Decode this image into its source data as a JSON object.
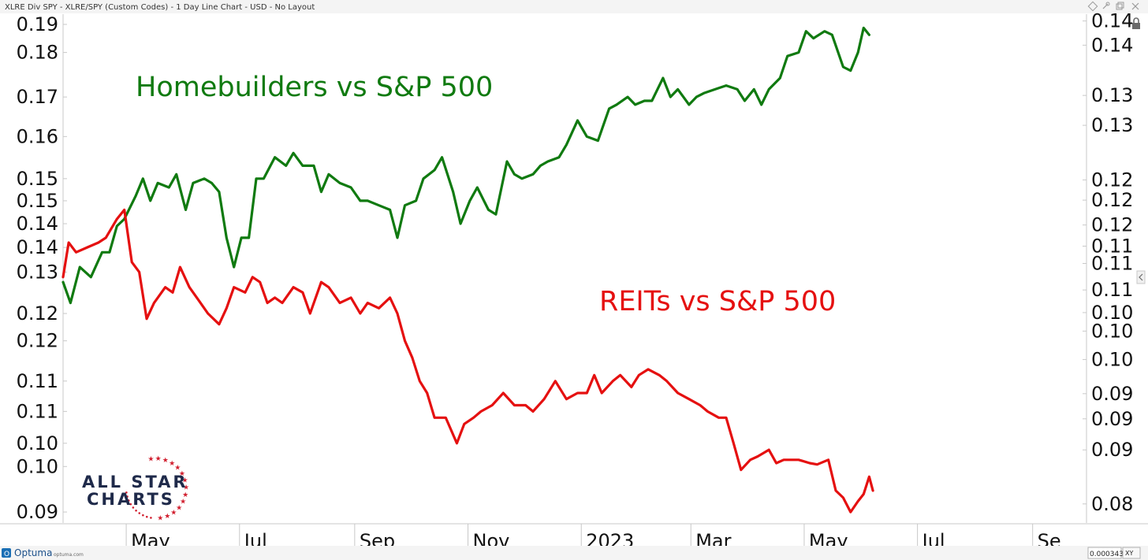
{
  "header": {
    "title": "XLRE Div SPY - XLRE/SPY (Custom Codes) - 1 Day Line Chart - USD - No Layout"
  },
  "toolbar": {
    "lock_icon": "lock-icon",
    "pin_icon": "pin-icon",
    "restore_icon": "restore-icon",
    "close_icon": "close-icon"
  },
  "footer": {
    "brand": "Optuma",
    "brand_url": "optuma.com",
    "readout": "0.000343",
    "xy_label": "XY"
  },
  "logo": {
    "line1": "ALL STAR",
    "line2": "CHARTS"
  },
  "colors": {
    "homebuilders": "#107a10",
    "reits": "#e51010",
    "axis": "#c8c8c8"
  },
  "chart_data": {
    "type": "line",
    "title": "",
    "xlabel": "",
    "ylabel": "",
    "x_ticks": [
      "May",
      "Jul",
      "Sep",
      "Nov",
      "2023",
      "Mar",
      "May",
      "Jul",
      "Se"
    ],
    "left_axis": {
      "scale": "log",
      "ticks": [
        "0.19",
        "0.18",
        "0.17",
        "0.16",
        "0.15",
        "0.15",
        "0.14",
        "0.14",
        "0.13",
        "0.12",
        "0.12",
        "0.11",
        "0.11",
        "0.10",
        "0.10",
        "0.09"
      ],
      "ylim": [
        0.0885,
        0.193
      ]
    },
    "right_axis": {
      "scale": "log",
      "ticks": [
        "0.14",
        "0.14",
        "0.13",
        "0.13",
        "0.12",
        "0.12",
        "0.12",
        "0.11",
        "0.11",
        "0.11",
        "0.10",
        "0.10",
        "0.10",
        "0.09",
        "0.09",
        "0.09",
        "0.08"
      ],
      "ylim": [
        0.0878,
        0.1465
      ]
    },
    "annotations": [
      "Homebuilders vs S&P 500",
      "REITs vs S&P 500"
    ],
    "series": [
      {
        "label": "Homebuilders vs S&P 500",
        "axis": "left",
        "color": "#107a10",
        "points": [
          [
            "2022-03-28",
            0.128
          ],
          [
            "2022-04-01",
            0.124
          ],
          [
            "2022-04-06",
            0.131
          ],
          [
            "2022-04-12",
            0.129
          ],
          [
            "2022-04-18",
            0.134
          ],
          [
            "2022-04-22",
            0.134
          ],
          [
            "2022-04-26",
            0.1395
          ],
          [
            "2022-04-30",
            0.141
          ],
          [
            "2022-05-06",
            0.146
          ],
          [
            "2022-05-10",
            0.15
          ],
          [
            "2022-05-14",
            0.145
          ],
          [
            "2022-05-18",
            0.149
          ],
          [
            "2022-05-24",
            0.148
          ],
          [
            "2022-05-28",
            0.151
          ],
          [
            "2022-06-02",
            0.143
          ],
          [
            "2022-06-06",
            0.149
          ],
          [
            "2022-06-12",
            0.15
          ],
          [
            "2022-06-16",
            0.149
          ],
          [
            "2022-06-20",
            0.147
          ],
          [
            "2022-06-24",
            0.137
          ],
          [
            "2022-06-28",
            0.131
          ],
          [
            "2022-07-02",
            0.137
          ],
          [
            "2022-07-06",
            0.137
          ],
          [
            "2022-07-10",
            0.15
          ],
          [
            "2022-07-14",
            0.15
          ],
          [
            "2022-07-20",
            0.155
          ],
          [
            "2022-07-26",
            0.153
          ],
          [
            "2022-07-30",
            0.156
          ],
          [
            "2022-08-04",
            0.153
          ],
          [
            "2022-08-10",
            0.153
          ],
          [
            "2022-08-14",
            0.147
          ],
          [
            "2022-08-18",
            0.151
          ],
          [
            "2022-08-24",
            0.149
          ],
          [
            "2022-08-30",
            0.148
          ],
          [
            "2022-09-04",
            0.145
          ],
          [
            "2022-09-08",
            0.145
          ],
          [
            "2022-09-14",
            0.144
          ],
          [
            "2022-09-20",
            0.143
          ],
          [
            "2022-09-24",
            0.137
          ],
          [
            "2022-09-28",
            0.144
          ],
          [
            "2022-10-04",
            0.145
          ],
          [
            "2022-10-08",
            0.15
          ],
          [
            "2022-10-14",
            0.152
          ],
          [
            "2022-10-18",
            0.155
          ],
          [
            "2022-10-24",
            0.147
          ],
          [
            "2022-10-28",
            0.14
          ],
          [
            "2022-11-02",
            0.145
          ],
          [
            "2022-11-06",
            0.148
          ],
          [
            "2022-11-12",
            0.143
          ],
          [
            "2022-11-16",
            0.142
          ],
          [
            "2022-11-22",
            0.154
          ],
          [
            "2022-11-26",
            0.151
          ],
          [
            "2022-11-30",
            0.15
          ],
          [
            "2022-12-06",
            0.151
          ],
          [
            "2022-12-10",
            0.153
          ],
          [
            "2022-12-14",
            0.154
          ],
          [
            "2022-12-20",
            0.155
          ],
          [
            "2022-12-24",
            0.158
          ],
          [
            "2022-12-30",
            0.164
          ],
          [
            "2023-01-04",
            0.16
          ],
          [
            "2023-01-10",
            0.159
          ],
          [
            "2023-01-16",
            0.167
          ],
          [
            "2023-01-20",
            0.168
          ],
          [
            "2023-01-26",
            0.17
          ],
          [
            "2023-01-30",
            0.168
          ],
          [
            "2023-02-04",
            0.169
          ],
          [
            "2023-02-08",
            0.169
          ],
          [
            "2023-02-14",
            0.175
          ],
          [
            "2023-02-18",
            0.17
          ],
          [
            "2023-02-22",
            0.172
          ],
          [
            "2023-02-28",
            0.168
          ],
          [
            "2023-03-04",
            0.17
          ],
          [
            "2023-03-08",
            0.171
          ],
          [
            "2023-03-14",
            0.172
          ],
          [
            "2023-03-20",
            0.173
          ],
          [
            "2023-03-26",
            0.172
          ],
          [
            "2023-03-30",
            0.169
          ],
          [
            "2023-04-04",
            0.172
          ],
          [
            "2023-04-08",
            0.168
          ],
          [
            "2023-04-12",
            0.172
          ],
          [
            "2023-04-18",
            0.175
          ],
          [
            "2023-04-22",
            0.181
          ],
          [
            "2023-04-28",
            0.182
          ],
          [
            "2023-05-02",
            0.188
          ],
          [
            "2023-05-06",
            0.186
          ],
          [
            "2023-05-12",
            0.188
          ],
          [
            "2023-05-16",
            0.187
          ],
          [
            "2023-05-22",
            0.178
          ],
          [
            "2023-05-26",
            0.177
          ],
          [
            "2023-05-30",
            0.182
          ],
          [
            "2023-06-02",
            0.189
          ],
          [
            "2023-06-05",
            0.187
          ]
        ]
      },
      {
        "label": "REITs vs S&P 500",
        "axis": "left",
        "color": "#e51010",
        "points": [
          [
            "2022-03-28",
            0.129
          ],
          [
            "2022-03-31",
            0.136
          ],
          [
            "2022-04-04",
            0.134
          ],
          [
            "2022-04-10",
            0.135
          ],
          [
            "2022-04-16",
            0.136
          ],
          [
            "2022-04-20",
            0.137
          ],
          [
            "2022-04-26",
            0.141
          ],
          [
            "2022-04-30",
            0.143
          ],
          [
            "2022-05-04",
            0.132
          ],
          [
            "2022-05-08",
            0.13
          ],
          [
            "2022-05-12",
            0.121
          ],
          [
            "2022-05-16",
            0.124
          ],
          [
            "2022-05-22",
            0.127
          ],
          [
            "2022-05-26",
            0.126
          ],
          [
            "2022-05-30",
            0.131
          ],
          [
            "2022-06-04",
            0.127
          ],
          [
            "2022-06-08",
            0.125
          ],
          [
            "2022-06-14",
            0.122
          ],
          [
            "2022-06-20",
            0.12
          ],
          [
            "2022-06-24",
            0.123
          ],
          [
            "2022-06-28",
            0.127
          ],
          [
            "2022-07-04",
            0.126
          ],
          [
            "2022-07-08",
            0.129
          ],
          [
            "2022-07-12",
            0.128
          ],
          [
            "2022-07-16",
            0.124
          ],
          [
            "2022-07-20",
            0.125
          ],
          [
            "2022-07-24",
            0.124
          ],
          [
            "2022-07-30",
            0.127
          ],
          [
            "2022-08-04",
            0.126
          ],
          [
            "2022-08-08",
            0.122
          ],
          [
            "2022-08-14",
            0.128
          ],
          [
            "2022-08-18",
            0.127
          ],
          [
            "2022-08-24",
            0.124
          ],
          [
            "2022-08-30",
            0.125
          ],
          [
            "2022-09-04",
            0.122
          ],
          [
            "2022-09-08",
            0.124
          ],
          [
            "2022-09-14",
            0.123
          ],
          [
            "2022-09-20",
            0.125
          ],
          [
            "2022-09-24",
            0.122
          ],
          [
            "2022-09-28",
            0.117
          ],
          [
            "2022-10-02",
            0.114
          ],
          [
            "2022-10-06",
            0.11
          ],
          [
            "2022-10-10",
            0.108
          ],
          [
            "2022-10-14",
            0.104
          ],
          [
            "2022-10-20",
            0.104
          ],
          [
            "2022-10-26",
            0.1
          ],
          [
            "2022-10-30",
            0.103
          ],
          [
            "2022-11-04",
            0.104
          ],
          [
            "2022-11-08",
            0.105
          ],
          [
            "2022-11-14",
            0.106
          ],
          [
            "2022-11-20",
            0.108
          ],
          [
            "2022-11-26",
            0.106
          ],
          [
            "2022-12-02",
            0.106
          ],
          [
            "2022-12-06",
            0.105
          ],
          [
            "2022-12-12",
            0.107
          ],
          [
            "2022-12-18",
            0.11
          ],
          [
            "2022-12-24",
            0.107
          ],
          [
            "2022-12-30",
            0.108
          ],
          [
            "2023-01-04",
            0.108
          ],
          [
            "2023-01-08",
            0.111
          ],
          [
            "2023-01-12",
            0.108
          ],
          [
            "2023-01-18",
            0.11
          ],
          [
            "2023-01-22",
            0.111
          ],
          [
            "2023-01-28",
            0.109
          ],
          [
            "2023-02-01",
            0.111
          ],
          [
            "2023-02-06",
            0.112
          ],
          [
            "2023-02-12",
            0.111
          ],
          [
            "2023-02-16",
            0.11
          ],
          [
            "2023-02-22",
            0.108
          ],
          [
            "2023-02-28",
            0.107
          ],
          [
            "2023-03-06",
            0.106
          ],
          [
            "2023-03-10",
            0.105
          ],
          [
            "2023-03-16",
            0.104
          ],
          [
            "2023-03-20",
            0.104
          ],
          [
            "2023-03-24",
            0.1
          ],
          [
            "2023-03-28",
            0.096
          ],
          [
            "2023-04-02",
            0.0975
          ],
          [
            "2023-04-06",
            0.098
          ],
          [
            "2023-04-12",
            0.099
          ],
          [
            "2023-04-16",
            0.097
          ],
          [
            "2023-04-20",
            0.0975
          ],
          [
            "2023-04-28",
            0.0975
          ],
          [
            "2023-05-04",
            0.097
          ],
          [
            "2023-05-08",
            0.0968
          ],
          [
            "2023-05-14",
            0.0975
          ],
          [
            "2023-05-18",
            0.093
          ],
          [
            "2023-05-22",
            0.092
          ],
          [
            "2023-05-26",
            0.09
          ],
          [
            "2023-05-30",
            0.0915
          ],
          [
            "2023-06-02",
            0.0925
          ],
          [
            "2023-06-05",
            0.095
          ],
          [
            "2023-06-07",
            0.093
          ]
        ]
      }
    ]
  }
}
